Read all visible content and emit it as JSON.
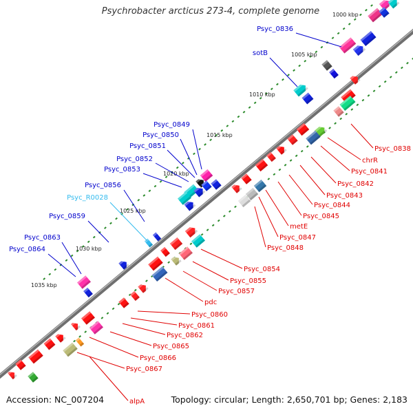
{
  "title": "Psychrobacter arcticus 273-4, complete genome",
  "accession": "Accession: NC_007204",
  "summary": "Topology: circular; Length: 2,650,701 bp; Genes: 2,183",
  "colors": {
    "backbone": "#808080",
    "forward_label": "#0000cc",
    "reverse_label": "#e00000",
    "rna_label": "#33bbee",
    "tick": "#2a8a2a"
  },
  "kbp_ticks": [
    "1000 kbp",
    "1005 kbp",
    "1010 kbp",
    "1015 kbp",
    "1020 kbp",
    "1025 kbp",
    "1030 kbp",
    "1035 kbp"
  ],
  "forward_genes": [
    "Psyc_0836",
    "sotB",
    "Psyc_0849",
    "Psyc_0850",
    "Psyc_0851",
    "Psyc_0852",
    "Psyc_0853",
    "Psyc_0856",
    "Psyc_0859",
    "Psyc_0863",
    "Psyc_0864"
  ],
  "rna_genes": [
    "Psyc_R0028"
  ],
  "reverse_genes": [
    "Psyc_0838",
    "chrR",
    "Psyc_0841",
    "Psyc_0842",
    "Psyc_0843",
    "Psyc_0844",
    "Psyc_0845",
    "metE",
    "Psyc_0847",
    "Psyc_0848",
    "Psyc_0854",
    "Psyc_0855",
    "Psyc_0857",
    "pdc",
    "Psyc_0860",
    "Psyc_0861",
    "Psyc_0862",
    "Psyc_0865",
    "Psyc_0866",
    "Psyc_0867",
    "alpA"
  ]
}
